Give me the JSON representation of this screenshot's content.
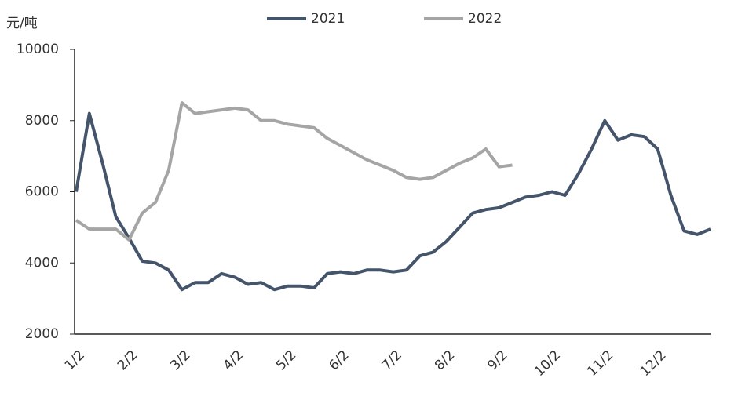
{
  "chart_data": {
    "type": "line",
    "y_label": "元/吨",
    "categories": [
      "1/2",
      null,
      null,
      null,
      "2/2",
      null,
      null,
      null,
      "3/2",
      null,
      null,
      null,
      "4/2",
      null,
      null,
      null,
      "5/2",
      null,
      null,
      null,
      "6/2",
      null,
      null,
      null,
      "7/2",
      null,
      null,
      null,
      "8/2",
      null,
      null,
      null,
      "9/2",
      null,
      null,
      null,
      "10/2",
      null,
      null,
      null,
      "11/2",
      null,
      null,
      null,
      "12/2",
      null,
      null,
      null,
      null
    ],
    "series": [
      {
        "name": "2021",
        "color": "#44546a",
        "values": [
          6000,
          8200,
          6800,
          5300,
          4700,
          4050,
          4000,
          3800,
          3250,
          3450,
          3450,
          3700,
          3600,
          3400,
          3450,
          3250,
          3350,
          3350,
          3300,
          3700,
          3750,
          3700,
          3800,
          3800,
          3750,
          3800,
          4200,
          4300,
          4600,
          5000,
          5400,
          5500,
          5550,
          5700,
          5850,
          5900,
          6000,
          5900,
          6500,
          7200,
          8000,
          7450,
          7600,
          7550,
          7200,
          5900,
          4900,
          4800,
          4950
        ]
      },
      {
        "name": "2022",
        "color": "#a5a5a5",
        "values": [
          5200,
          4950,
          4950,
          4950,
          4650,
          5400,
          5700,
          6600,
          8500,
          8200,
          8250,
          8300,
          8350,
          8300,
          8000,
          8000,
          7900,
          7850,
          7800,
          7500,
          7300,
          7100,
          6900,
          6750,
          6600,
          6400,
          6350,
          6400,
          6600,
          6800,
          6950,
          7200,
          6700,
          6750,
          null,
          null,
          null,
          null,
          null,
          null,
          null,
          null,
          null,
          null,
          null,
          null,
          null,
          null,
          null
        ]
      }
    ],
    "ylim": [
      2000,
      10000
    ],
    "yticks": [
      2000,
      4000,
      6000,
      8000,
      10000
    ],
    "legend": "top"
  }
}
